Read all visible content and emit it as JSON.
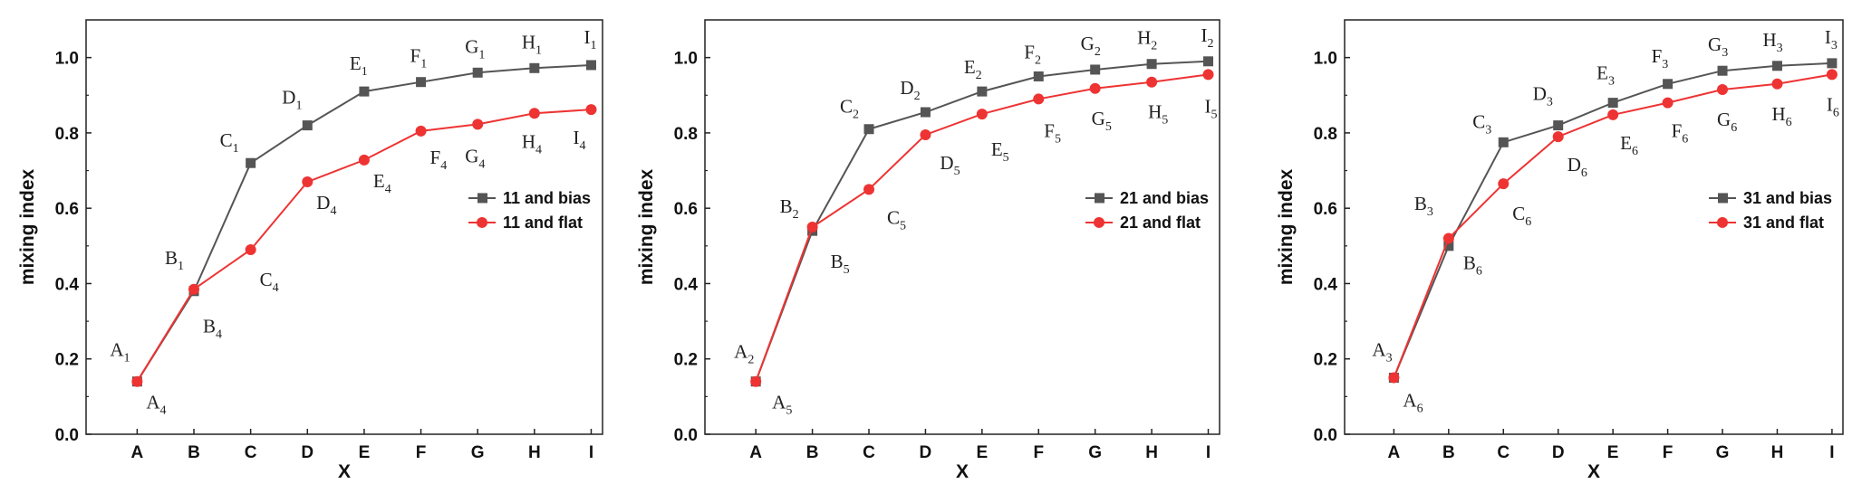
{
  "chart_data": [
    {
      "type": "line",
      "categories": [
        "A",
        "B",
        "C",
        "D",
        "E",
        "F",
        "G",
        "H",
        "I"
      ],
      "xlabel": "X",
      "ylabel": "mixing index",
      "ylim": [
        0,
        1.1
      ],
      "yticks": [
        "0.0",
        "0.2",
        "0.4",
        "0.6",
        "0.8",
        "1.0"
      ],
      "legend_position": "center-right",
      "series": [
        {
          "name": "11 and bias",
          "color": "#555555",
          "marker": "square",
          "values": [
            0.14,
            0.38,
            0.72,
            0.82,
            0.91,
            0.935,
            0.96,
            0.972,
            0.98
          ],
          "labels": [
            [
              "A",
              "1"
            ],
            [
              "B",
              "1"
            ],
            [
              "C",
              "1"
            ],
            [
              "D",
              "1"
            ],
            [
              "E",
              "1"
            ],
            [
              "F",
              "1"
            ],
            [
              "G",
              "1"
            ],
            [
              "H",
              "1"
            ],
            [
              "I",
              "1"
            ]
          ]
        },
        {
          "name": "11 and flat",
          "color": "#ee3333",
          "marker": "circle",
          "values": [
            0.14,
            0.385,
            0.49,
            0.67,
            0.728,
            0.805,
            0.823,
            0.852,
            0.862
          ],
          "labels": [
            [
              "A",
              "4"
            ],
            [
              "B",
              "4"
            ],
            [
              "C",
              "4"
            ],
            [
              "D",
              "4"
            ],
            [
              "E",
              "4"
            ],
            [
              "F",
              "4"
            ],
            [
              "G",
              "4"
            ],
            [
              "H",
              "4"
            ],
            [
              "I",
              "4"
            ]
          ]
        }
      ]
    },
    {
      "type": "line",
      "categories": [
        "A",
        "B",
        "C",
        "D",
        "E",
        "F",
        "G",
        "H",
        "I"
      ],
      "xlabel": "X",
      "ylabel": "mixing index",
      "ylim": [
        0,
        1.1
      ],
      "yticks": [
        "0.0",
        "0.2",
        "0.4",
        "0.6",
        "0.8",
        "1.0"
      ],
      "legend_position": "center-right",
      "series": [
        {
          "name": "21 and bias",
          "color": "#555555",
          "marker": "square",
          "values": [
            0.14,
            0.54,
            0.81,
            0.855,
            0.91,
            0.95,
            0.968,
            0.983,
            0.99
          ],
          "labels": [
            [
              "A",
              "2"
            ],
            [
              "B",
              "2"
            ],
            [
              "C",
              "2"
            ],
            [
              "D",
              "2"
            ],
            [
              "E",
              "2"
            ],
            [
              "F",
              "2"
            ],
            [
              "G",
              "2"
            ],
            [
              "H",
              "2"
            ],
            [
              "I",
              "2"
            ]
          ]
        },
        {
          "name": "21 and flat",
          "color": "#ee3333",
          "marker": "circle",
          "values": [
            0.14,
            0.55,
            0.65,
            0.795,
            0.85,
            0.89,
            0.918,
            0.935,
            0.955
          ],
          "labels": [
            [
              "A",
              "5"
            ],
            [
              "B",
              "5"
            ],
            [
              "C",
              "5"
            ],
            [
              "D",
              "5"
            ],
            [
              "E",
              "5"
            ],
            [
              "F",
              "5"
            ],
            [
              "G",
              "5"
            ],
            [
              "H",
              "5"
            ],
            [
              "I",
              "5"
            ]
          ]
        }
      ]
    },
    {
      "type": "line",
      "categories": [
        "A",
        "B",
        "C",
        "D",
        "E",
        "F",
        "G",
        "H",
        "I"
      ],
      "xlabel": "X",
      "ylabel": "mixing index",
      "ylim": [
        0,
        1.1
      ],
      "yticks": [
        "0.0",
        "0.2",
        "0.4",
        "0.6",
        "0.8",
        "1.0"
      ],
      "legend_position": "center-right",
      "series": [
        {
          "name": "31 and bias",
          "color": "#555555",
          "marker": "square",
          "values": [
            0.15,
            0.5,
            0.775,
            0.82,
            0.88,
            0.93,
            0.965,
            0.978,
            0.985
          ],
          "labels": [
            [
              "A",
              "3"
            ],
            [
              "B",
              "3"
            ],
            [
              "C",
              "3"
            ],
            [
              "D",
              "3"
            ],
            [
              "E",
              "3"
            ],
            [
              "F",
              "3"
            ],
            [
              "G",
              "3"
            ],
            [
              "H",
              "3"
            ],
            [
              "I",
              "3"
            ]
          ]
        },
        {
          "name": "31 and flat",
          "color": "#ee3333",
          "marker": "circle",
          "values": [
            0.15,
            0.52,
            0.665,
            0.79,
            0.848,
            0.88,
            0.915,
            0.93,
            0.955
          ],
          "labels": [
            [
              "A",
              "6"
            ],
            [
              "B",
              "6"
            ],
            [
              "C",
              "6"
            ],
            [
              "D",
              "6"
            ],
            [
              "E",
              "6"
            ],
            [
              "F",
              "6"
            ],
            [
              "G",
              "6"
            ],
            [
              "H",
              "6"
            ],
            [
              "I",
              "6"
            ]
          ]
        }
      ]
    }
  ]
}
